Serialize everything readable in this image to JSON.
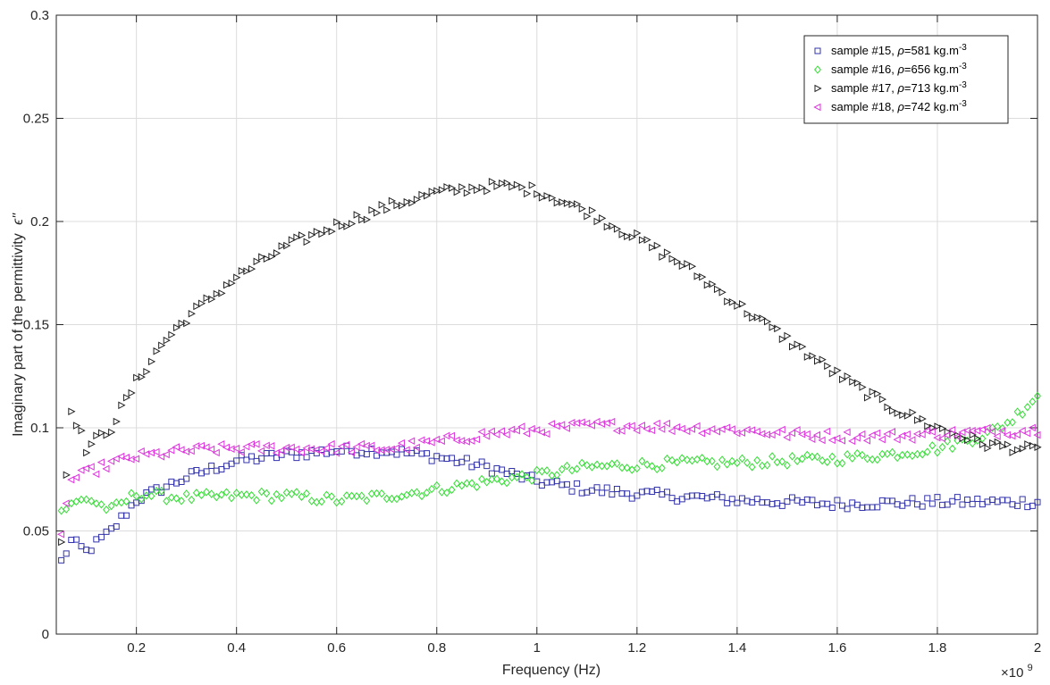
{
  "chart_data": {
    "type": "scatter",
    "xlabel": "Frequency (Hz)",
    "ylabel": "Imaginary part of the permittivity",
    "ylabel_symbol": "ϵ\"",
    "x_exponent_label": "×10",
    "x_exponent_power": "9",
    "xlim": [
      0.04,
      2.0
    ],
    "ylim": [
      0,
      0.3
    ],
    "x_scale_multiplier": 1000000000,
    "x_ticks": [
      0.2,
      0.4,
      0.6,
      0.8,
      1,
      1.2,
      1.4,
      1.6,
      1.8,
      2
    ],
    "x_tick_labels": [
      "0.2",
      "0.4",
      "0.6",
      "0.8",
      "1",
      "1.2",
      "1.4",
      "1.6",
      "1.8",
      "2"
    ],
    "y_ticks": [
      0,
      0.05,
      0.1,
      0.15,
      0.2,
      0.25,
      0.3
    ],
    "y_tick_labels": [
      "0",
      "0.05",
      "0.1",
      "0.15",
      "0.2",
      "0.25",
      "0.3"
    ],
    "grid": true,
    "legend_position": "top-right",
    "x_start": 0.05,
    "x_step": 0.01,
    "n_points": 196,
    "series": [
      {
        "name": "sample #15, ρ=581 kg.m-3",
        "label_prefix": "sample #15, ",
        "rho_symbol": "ρ",
        "label_value": "=581 kg.m",
        "label_exp": "-3",
        "marker": "square",
        "color": "#3333aa",
        "anchors": [
          [
            0.05,
            0.035
          ],
          [
            0.07,
            0.045
          ],
          [
            0.1,
            0.04
          ],
          [
            0.15,
            0.05
          ],
          [
            0.2,
            0.065
          ],
          [
            0.3,
            0.076
          ],
          [
            0.4,
            0.084
          ],
          [
            0.5,
            0.087
          ],
          [
            0.6,
            0.089
          ],
          [
            0.7,
            0.089
          ],
          [
            0.8,
            0.086
          ],
          [
            0.9,
            0.081
          ],
          [
            1.0,
            0.074
          ],
          [
            1.1,
            0.07
          ],
          [
            1.2,
            0.068
          ],
          [
            1.4,
            0.065
          ],
          [
            1.6,
            0.063
          ],
          [
            1.8,
            0.064
          ],
          [
            2.0,
            0.064
          ]
        ]
      },
      {
        "name": "sample #16, ρ=656 kg.m-3",
        "label_prefix": "sample #16, ",
        "rho_symbol": "ρ",
        "label_value": "=656 kg.m",
        "label_exp": "-3",
        "marker": "diamond",
        "color": "#33dd33",
        "anchors": [
          [
            0.05,
            0.06
          ],
          [
            0.1,
            0.066
          ],
          [
            0.15,
            0.06
          ],
          [
            0.2,
            0.068
          ],
          [
            0.3,
            0.066
          ],
          [
            0.4,
            0.067
          ],
          [
            0.5,
            0.067
          ],
          [
            0.6,
            0.065
          ],
          [
            0.7,
            0.067
          ],
          [
            0.8,
            0.07
          ],
          [
            0.9,
            0.074
          ],
          [
            1.0,
            0.077
          ],
          [
            1.1,
            0.081
          ],
          [
            1.2,
            0.082
          ],
          [
            1.3,
            0.083
          ],
          [
            1.4,
            0.083
          ],
          [
            1.5,
            0.084
          ],
          [
            1.6,
            0.085
          ],
          [
            1.7,
            0.087
          ],
          [
            1.8,
            0.09
          ],
          [
            1.9,
            0.097
          ],
          [
            1.95,
            0.104
          ],
          [
            2.0,
            0.116
          ]
        ]
      },
      {
        "name": "sample #17, ρ=713 kg.m-3",
        "label_prefix": "sample #17, ",
        "rho_symbol": "ρ",
        "label_value": "=713 kg.m",
        "label_exp": "-3",
        "marker": "triangle-right",
        "color": "#222222",
        "anchors": [
          [
            0.05,
            0.045
          ],
          [
            0.07,
            0.11
          ],
          [
            0.1,
            0.09
          ],
          [
            0.15,
            0.1
          ],
          [
            0.2,
            0.122
          ],
          [
            0.25,
            0.14
          ],
          [
            0.3,
            0.153
          ],
          [
            0.35,
            0.163
          ],
          [
            0.4,
            0.173
          ],
          [
            0.5,
            0.188
          ],
          [
            0.6,
            0.198
          ],
          [
            0.7,
            0.207
          ],
          [
            0.8,
            0.214
          ],
          [
            0.9,
            0.217
          ],
          [
            0.95,
            0.217
          ],
          [
            1.0,
            0.215
          ],
          [
            1.1,
            0.205
          ],
          [
            1.2,
            0.192
          ],
          [
            1.3,
            0.178
          ],
          [
            1.4,
            0.16
          ],
          [
            1.5,
            0.143
          ],
          [
            1.6,
            0.126
          ],
          [
            1.7,
            0.111
          ],
          [
            1.8,
            0.1
          ],
          [
            1.9,
            0.092
          ],
          [
            2.0,
            0.089
          ]
        ]
      },
      {
        "name": "sample #18, ρ=742 kg.m-3",
        "label_prefix": "sample #18, ",
        "rho_symbol": "ρ",
        "label_value": "=742 kg.m",
        "label_exp": "-3",
        "marker": "triangle-left",
        "color": "#dd33dd",
        "anchors": [
          [
            0.05,
            0.05
          ],
          [
            0.07,
            0.075
          ],
          [
            0.1,
            0.078
          ],
          [
            0.15,
            0.083
          ],
          [
            0.2,
            0.086
          ],
          [
            0.3,
            0.089
          ],
          [
            0.4,
            0.09
          ],
          [
            0.5,
            0.09
          ],
          [
            0.6,
            0.09
          ],
          [
            0.7,
            0.09
          ],
          [
            0.8,
            0.093
          ],
          [
            0.9,
            0.097
          ],
          [
            1.0,
            0.099
          ],
          [
            1.1,
            0.101
          ],
          [
            1.2,
            0.101
          ],
          [
            1.3,
            0.1
          ],
          [
            1.4,
            0.099
          ],
          [
            1.5,
            0.097
          ],
          [
            1.6,
            0.096
          ],
          [
            1.7,
            0.096
          ],
          [
            1.8,
            0.097
          ],
          [
            1.9,
            0.098
          ],
          [
            2.0,
            0.099
          ]
        ]
      }
    ]
  }
}
